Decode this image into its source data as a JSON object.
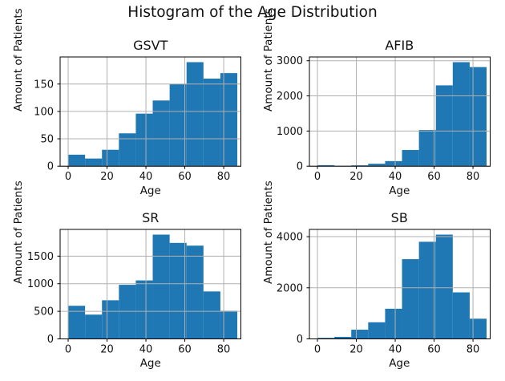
{
  "suptitle": "Histogram of the Age Distribution",
  "chart_data": [
    {
      "type": "histogram",
      "title": "GSVT",
      "xlabel": "Age",
      "ylabel": "Amount of Patients",
      "bin_edges": [
        0,
        8.7,
        17.4,
        26.1,
        34.8,
        43.5,
        52.2,
        60.9,
        69.6,
        78.3,
        87
      ],
      "values": [
        21,
        14,
        30,
        60,
        96,
        120,
        150,
        190,
        160,
        170
      ],
      "xticks": [
        0,
        20,
        40,
        60,
        80
      ],
      "yticks": [
        0,
        50,
        100,
        150
      ],
      "xlim": [
        -4.13,
        88.84
      ],
      "ylim": [
        0,
        199.5
      ],
      "grid": true,
      "legend": "none",
      "bar_color": "#1f77b4",
      "grid_color": "#b0b0b0"
    },
    {
      "type": "histogram",
      "title": "AFIB",
      "xlabel": "Age",
      "ylabel": "Amount of Patients",
      "bin_edges": [
        0,
        8.7,
        17.4,
        26.1,
        34.8,
        43.5,
        52.2,
        60.9,
        69.6,
        78.3,
        87
      ],
      "values": [
        30,
        10,
        25,
        70,
        145,
        460,
        1030,
        2300,
        2960,
        2820
      ],
      "xticks": [
        0,
        20,
        40,
        60,
        80
      ],
      "yticks": [
        0,
        1000,
        2000,
        3000
      ],
      "xlim": [
        -4.13,
        88.84
      ],
      "ylim": [
        0,
        3108
      ],
      "grid": true,
      "legend": "none",
      "bar_color": "#1f77b4",
      "grid_color": "#b0b0b0"
    },
    {
      "type": "histogram",
      "title": "SR",
      "xlabel": "Age",
      "ylabel": "Amount of Patients",
      "bin_edges": [
        0,
        8.7,
        17.4,
        26.1,
        34.8,
        43.5,
        52.2,
        60.9,
        69.6,
        78.3,
        87
      ],
      "values": [
        600,
        440,
        700,
        980,
        1060,
        1890,
        1740,
        1690,
        860,
        510
      ],
      "xticks": [
        0,
        20,
        40,
        60,
        80
      ],
      "yticks": [
        0,
        500,
        1000,
        1500
      ],
      "xlim": [
        -4.13,
        88.84
      ],
      "ylim": [
        0,
        1984.5
      ],
      "grid": true,
      "legend": "none",
      "bar_color": "#1f77b4",
      "grid_color": "#b0b0b0"
    },
    {
      "type": "histogram",
      "title": "SB",
      "xlabel": "Age",
      "ylabel": "Amount of Patients",
      "bin_edges": [
        0,
        8.7,
        17.4,
        26.1,
        34.8,
        43.5,
        52.2,
        60.9,
        69.6,
        78.3,
        87
      ],
      "values": [
        40,
        80,
        360,
        650,
        1180,
        3120,
        3800,
        4080,
        1820,
        790
      ],
      "xticks": [
        0,
        20,
        40,
        60,
        80
      ],
      "yticks": [
        0,
        2000,
        4000
      ],
      "xlim": [
        -4.13,
        88.84
      ],
      "ylim": [
        0,
        4284
      ],
      "grid": true,
      "legend": "none",
      "bar_color": "#1f77b4",
      "grid_color": "#b0b0b0"
    }
  ]
}
